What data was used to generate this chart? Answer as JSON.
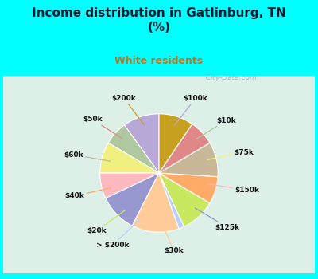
{
  "title": "Income distribution in Gatlinburg, TN\n(%)",
  "subtitle": "White residents",
  "title_color": "#1a1a2e",
  "subtitle_color": "#b87820",
  "background_color": "#00ffff",
  "chart_bg_left": "#e8f5e8",
  "chart_bg_right": "#d0eef5",
  "watermark": "  City-Data.com",
  "labels": [
    "$100k",
    "$10k",
    "$75k",
    "$150k",
    "$125k",
    "$30k",
    "> $200k",
    "$20k",
    "$40k",
    "$60k",
    "$50k",
    "$200k"
  ],
  "values": [
    10.0,
    6.5,
    8.5,
    7.0,
    10.5,
    13.0,
    1.5,
    9.5,
    7.5,
    9.5,
    7.0,
    9.5
  ],
  "colors": [
    "#b8a8d8",
    "#b0c8a0",
    "#f0f080",
    "#ffb8c0",
    "#9898d0",
    "#ffcc99",
    "#b8d0ff",
    "#c8e860",
    "#ffaa66",
    "#c8b898",
    "#e08888",
    "#c8a020"
  ],
  "startangle": 90
}
